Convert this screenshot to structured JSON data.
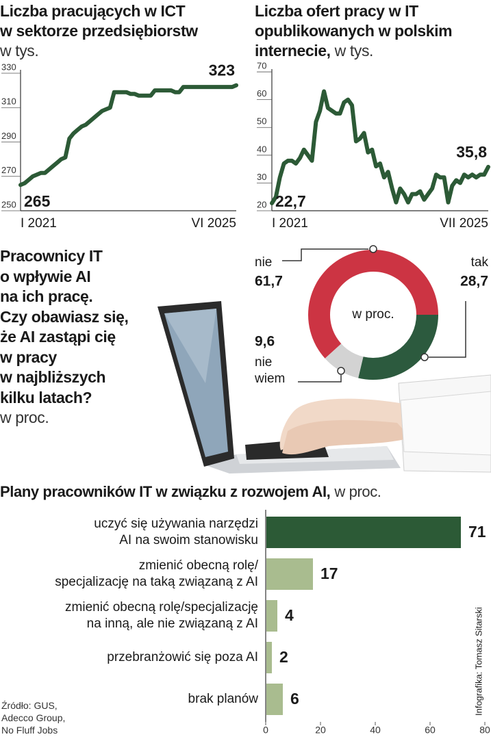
{
  "chart_data": [
    {
      "type": "line",
      "title": "Liczba pracujących w ICT\nw sektorze przedsiębiorstw",
      "subtitle": "w tys.",
      "categories": [
        "I 2021",
        null,
        null,
        null,
        null,
        null,
        null,
        null,
        null,
        null,
        null,
        null,
        null,
        null,
        null,
        null,
        null,
        null,
        null,
        null,
        null,
        null,
        null,
        null,
        null,
        null,
        null,
        null,
        null,
        null,
        null,
        null,
        null,
        null,
        null,
        null,
        null,
        null,
        null,
        null,
        null,
        null,
        null,
        null,
        null,
        null,
        null,
        null,
        null,
        null,
        null,
        null,
        null,
        "VI 2025"
      ],
      "values": [
        265,
        266,
        268,
        270,
        271,
        272,
        272,
        274,
        276,
        278,
        280,
        281,
        292,
        295,
        297,
        299,
        300,
        302,
        304,
        306,
        308,
        309,
        310,
        319,
        319,
        319,
        319,
        318,
        318,
        317,
        317,
        317,
        317,
        320,
        320,
        320,
        320,
        320,
        319,
        319,
        322,
        322,
        322,
        322,
        322,
        322,
        322,
        322,
        322,
        322,
        322,
        322,
        322,
        323
      ],
      "color": "#2c5a36",
      "ylim": [
        250,
        332
      ],
      "yticks": [
        250,
        270,
        290,
        310,
        330
      ]
    },
    {
      "type": "line",
      "title": "Liczba ofert pracy w IT\nopublikowanych w polskim\ninternecie,",
      "subtitle": "w tys.",
      "categories": [
        "I 2021",
        null,
        null,
        null,
        null,
        null,
        null,
        null,
        null,
        null,
        null,
        null,
        null,
        null,
        null,
        null,
        null,
        null,
        null,
        null,
        null,
        null,
        null,
        null,
        null,
        null,
        null,
        null,
        null,
        null,
        null,
        null,
        null,
        null,
        null,
        null,
        null,
        null,
        null,
        null,
        null,
        null,
        null,
        null,
        null,
        null,
        null,
        null,
        null,
        null,
        null,
        null,
        null,
        null,
        "VII 2025"
      ],
      "values": [
        22.7,
        25,
        32,
        37,
        38,
        38,
        37,
        39,
        42,
        40,
        38,
        52,
        56,
        63,
        57,
        56,
        55,
        55,
        59,
        60,
        58,
        45,
        46,
        48,
        41,
        42,
        36,
        37,
        32,
        34,
        28,
        23,
        28,
        26,
        23,
        26,
        26,
        27,
        24,
        26,
        28,
        33,
        32,
        32,
        23,
        29,
        31,
        30,
        33,
        32,
        33,
        32,
        33,
        33,
        35.8
      ],
      "value_labels": [
        "22,7",
        null,
        null,
        null,
        null,
        null,
        null,
        null,
        null,
        null,
        null,
        null,
        null,
        null,
        null,
        null,
        null,
        null,
        null,
        null,
        null,
        null,
        null,
        null,
        null,
        null,
        null,
        null,
        null,
        null,
        null,
        null,
        null,
        null,
        null,
        null,
        null,
        null,
        null,
        null,
        null,
        null,
        null,
        null,
        null,
        null,
        null,
        null,
        null,
        null,
        null,
        null,
        null,
        null,
        "35,8"
      ],
      "color": "#2c5a36",
      "ylim": [
        20,
        71
      ],
      "yticks": [
        20,
        30,
        40,
        50,
        60,
        70
      ]
    },
    {
      "type": "donut",
      "title": "Pracownicy IT\no wpływie AI\nna ich pracę.\nCzy obawiasz się,\nże AI zastąpi cię\nw pracy\nw najbliższych\nkilku latach?",
      "subtitle": "w proc.",
      "center_label": "w proc.",
      "categories": [
        "tak",
        "nie wiem",
        "nie"
      ],
      "values": [
        28.7,
        9.6,
        61.7
      ],
      "value_labels": [
        "28,7",
        "9,6",
        "61,7"
      ],
      "colors": [
        "#2c5a3e",
        "#d3d3d3",
        "#cc3443"
      ]
    },
    {
      "type": "barh",
      "title": "Plany pracowników IT w związku z rozwojem AI,",
      "subtitle": "w proc.",
      "categories": [
        "uczyć się używania narzędzi\nAI na swoim stanowisku",
        "zmienić obecną rolę/\nspecjalizację na taką związaną z AI",
        "zmienić obecną rolę/specjalizację\nna inną, ale nie związaną z AI",
        "przebranżowić się poza AI",
        "brak planów"
      ],
      "values": [
        71,
        17,
        4,
        2,
        6
      ],
      "colors": [
        "#2c5a36",
        "#a9bc8f",
        "#a9bc8f",
        "#a9bc8f",
        "#a9bc8f"
      ],
      "xlim": [
        0,
        80
      ],
      "xticks": [
        0,
        20,
        40,
        60,
        80
      ]
    }
  ],
  "source": "Źródło: GUS,\nAdecco Group,\nNo Fluff Jobs",
  "credit": "Infografika: Tomasz Sitarski"
}
